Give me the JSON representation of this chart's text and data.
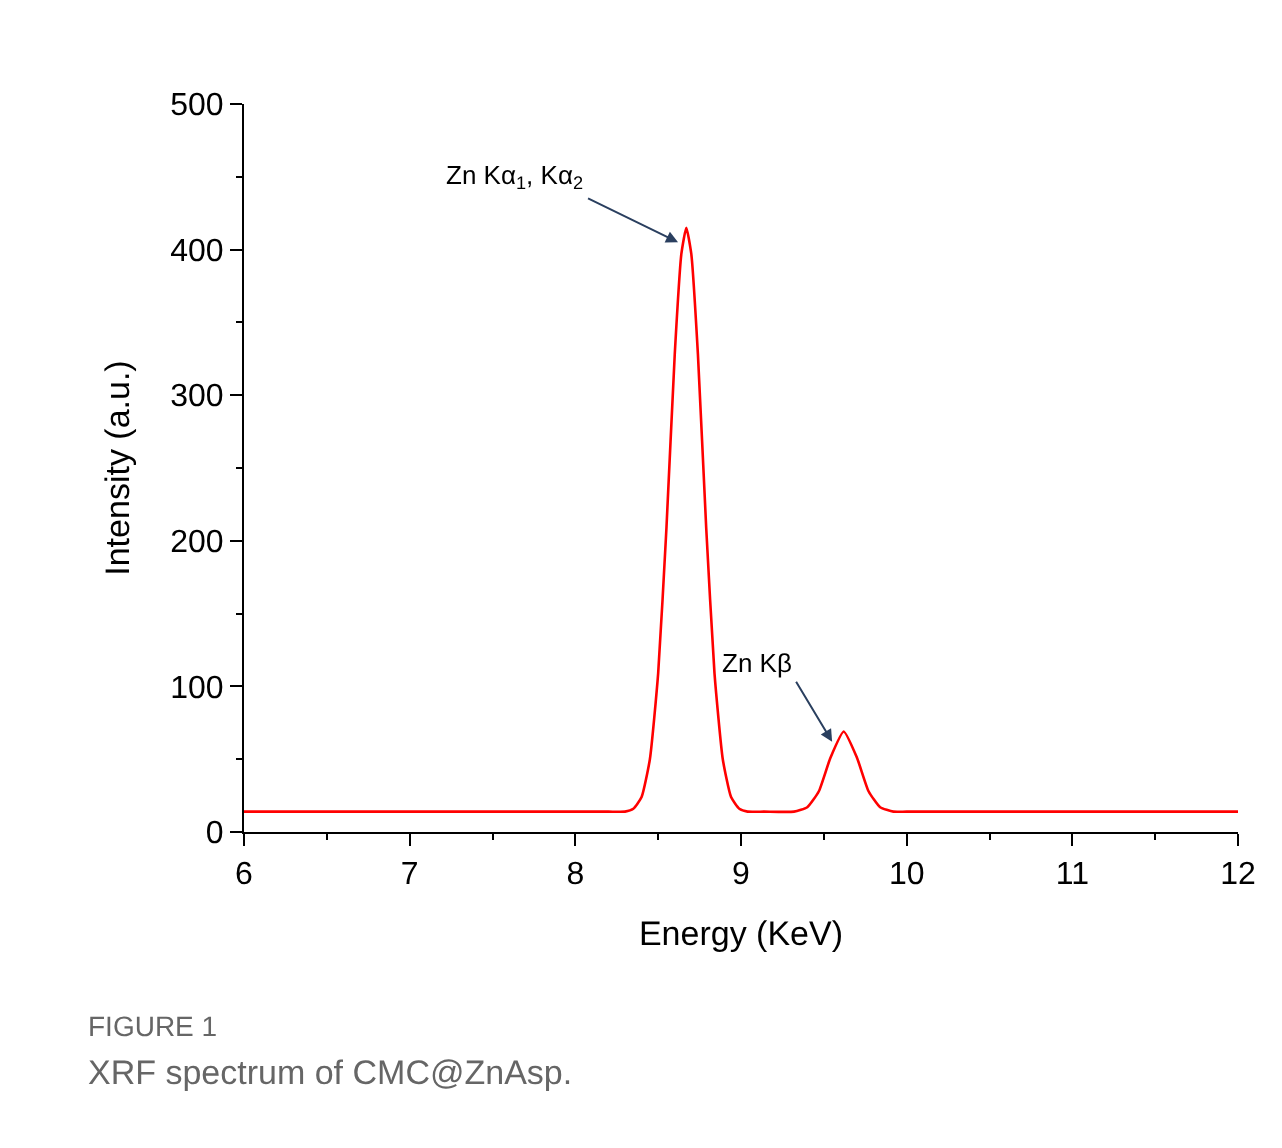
{
  "chart_data": {
    "type": "line",
    "xlabel": "Energy (KeV)",
    "ylabel": "Intensity (a.u.)",
    "xlim": [
      6,
      12
    ],
    "xticks": [
      6,
      7,
      8,
      9,
      10,
      11,
      12
    ],
    "ylim": [
      0,
      500
    ],
    "yticks": [
      0,
      100,
      200,
      300,
      400,
      500
    ],
    "marker": "none",
    "line_style": "solid",
    "series": [
      {
        "color": "#ff0000",
        "x": [
          6,
          7,
          8,
          8.2,
          8.3,
          8.35,
          8.4,
          8.45,
          8.5,
          8.55,
          8.6,
          8.64,
          8.67,
          8.7,
          8.74,
          8.79,
          8.84,
          8.89,
          8.94,
          8.99,
          9.04,
          9.14,
          9.32,
          9.4,
          9.47,
          9.54,
          9.62,
          9.7,
          9.77,
          9.84,
          9.92,
          10,
          11,
          12
        ],
        "values": [
          14,
          14,
          14,
          14,
          14,
          16,
          24,
          50,
          109,
          209,
          328,
          397,
          415,
          397,
          328,
          209,
          109,
          50,
          24,
          16,
          14,
          14,
          14,
          17,
          28,
          51,
          69,
          51,
          28,
          17,
          14,
          14,
          14,
          14
        ]
      }
    ],
    "annotations": [
      {
        "text": "Zn Kα$_{1}$, Kα$_{2}$",
        "x": 8.62,
        "y": 405
      },
      {
        "text": "Zn Kβ",
        "x": 9.55,
        "y": 62
      },
      "FIGURE 1",
      "XRF spectrum of CMC@ZnAsp."
    ]
  }
}
